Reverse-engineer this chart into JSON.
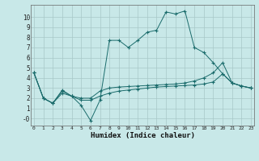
{
  "xlabel": "Humidex (Indice chaleur)",
  "background_color": "#c8e8e8",
  "grid_color": "#a8c8c8",
  "line_color": "#1a6b6b",
  "xlim": [
    -0.3,
    23.3
  ],
  "ylim": [
    -0.7,
    11.2
  ],
  "yticks": [
    0,
    1,
    2,
    3,
    4,
    5,
    6,
    7,
    8,
    9,
    10
  ],
  "ytick_labels": [
    "-0",
    "1",
    "2",
    "3",
    "4",
    "5",
    "6",
    "7",
    "8",
    "9",
    "10"
  ],
  "xticks": [
    0,
    1,
    2,
    3,
    4,
    5,
    6,
    7,
    8,
    9,
    10,
    11,
    12,
    13,
    14,
    15,
    16,
    17,
    18,
    19,
    20,
    21,
    22,
    23
  ],
  "series1_x": [
    0,
    1,
    2,
    3,
    4,
    5,
    6,
    7,
    8,
    9,
    10,
    11,
    12,
    13,
    14,
    15,
    16,
    17,
    18,
    19,
    20,
    21,
    22,
    23
  ],
  "series1_y": [
    4.5,
    2.0,
    1.5,
    2.8,
    2.2,
    1.3,
    -0.2,
    1.8,
    7.7,
    7.7,
    7.0,
    7.7,
    8.5,
    8.7,
    10.5,
    10.3,
    10.6,
    7.0,
    6.5,
    5.5,
    4.4,
    3.5,
    3.2,
    3.0
  ],
  "series2_x": [
    0,
    1,
    2,
    3,
    4,
    5,
    6,
    7,
    8,
    9,
    10,
    11,
    12,
    13,
    14,
    15,
    16,
    17,
    18,
    19,
    20,
    21,
    22,
    23
  ],
  "series2_y": [
    4.5,
    2.0,
    1.5,
    2.5,
    2.2,
    1.8,
    1.8,
    2.2,
    2.5,
    2.7,
    2.8,
    2.9,
    3.0,
    3.1,
    3.15,
    3.2,
    3.25,
    3.3,
    3.4,
    3.6,
    4.4,
    3.5,
    3.2,
    3.0
  ],
  "series3_x": [
    0,
    1,
    2,
    3,
    4,
    5,
    6,
    7,
    8,
    9,
    10,
    11,
    12,
    13,
    14,
    15,
    16,
    17,
    18,
    19,
    20,
    21,
    22,
    23
  ],
  "series3_y": [
    4.5,
    2.0,
    1.5,
    2.7,
    2.2,
    2.0,
    2.0,
    2.7,
    3.0,
    3.1,
    3.15,
    3.2,
    3.25,
    3.3,
    3.35,
    3.4,
    3.5,
    3.7,
    4.0,
    4.5,
    5.5,
    3.5,
    3.2,
    3.0
  ]
}
